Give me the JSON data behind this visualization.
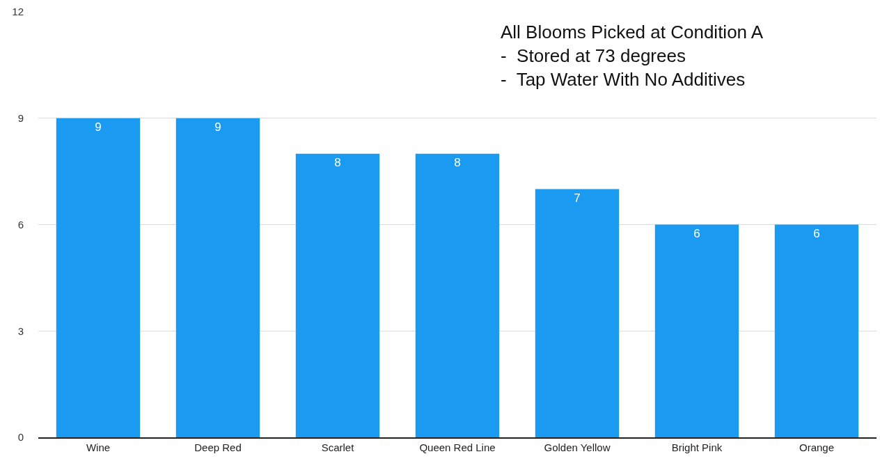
{
  "chart_data": {
    "type": "bar",
    "categories": [
      "Wine",
      "Deep Red",
      "Scarlet",
      "Queen Red Line",
      "Golden Yellow",
      "Bright Pink",
      "Orange"
    ],
    "values": [
      9,
      9,
      8,
      8,
      7,
      6,
      6
    ],
    "color": "#1a9af0",
    "ylim": [
      0,
      12
    ],
    "yticks": [
      0,
      3,
      6,
      9,
      12
    ],
    "grid": "y",
    "data_labels": true,
    "annotations": [
      "All Blooms Picked at Condition A\n-  Stored at 73 degrees\n-  Tap Water With No Additives"
    ]
  }
}
